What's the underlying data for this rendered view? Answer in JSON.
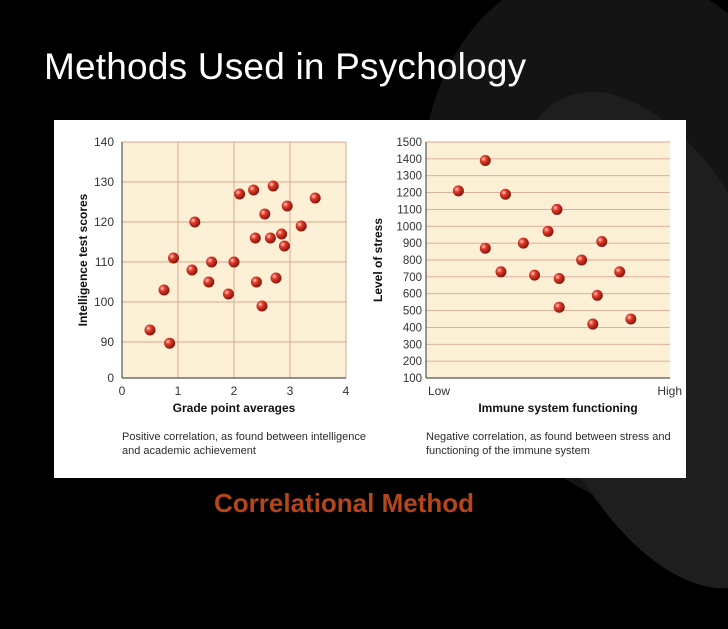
{
  "slide": {
    "title": "Methods Used in Psychology",
    "method_label": "Correlational Method"
  },
  "colors": {
    "plot_bg": "#fbefd5",
    "grid": "#d9a890",
    "point": "#e23a2a",
    "method_label": "#b5451b"
  },
  "chart_data": [
    {
      "type": "scatter",
      "xlabel": "Grade point averages",
      "ylabel": "Intelligence test scores",
      "xlim": [
        0,
        4
      ],
      "ylim": [
        0,
        140
      ],
      "x_ticks": [
        "0",
        "1",
        "2",
        "3",
        "4"
      ],
      "y_ticks": [
        "0",
        "90",
        "100",
        "110",
        "120",
        "130",
        "140"
      ],
      "caption": "Positive correlation, as found between intelligence and academic achievement",
      "grid": true,
      "points": [
        {
          "x": 0.5,
          "y": 93
        },
        {
          "x": 0.75,
          "y": 103
        },
        {
          "x": 0.85,
          "y": 87
        },
        {
          "x": 0.92,
          "y": 111
        },
        {
          "x": 1.25,
          "y": 108
        },
        {
          "x": 1.3,
          "y": 120
        },
        {
          "x": 1.55,
          "y": 105
        },
        {
          "x": 1.6,
          "y": 110
        },
        {
          "x": 1.9,
          "y": 102
        },
        {
          "x": 2.0,
          "y": 110
        },
        {
          "x": 2.1,
          "y": 127
        },
        {
          "x": 2.35,
          "y": 128
        },
        {
          "x": 2.38,
          "y": 116
        },
        {
          "x": 2.4,
          "y": 105
        },
        {
          "x": 2.5,
          "y": 99
        },
        {
          "x": 2.55,
          "y": 122
        },
        {
          "x": 2.65,
          "y": 116
        },
        {
          "x": 2.7,
          "y": 129
        },
        {
          "x": 2.75,
          "y": 106
        },
        {
          "x": 2.85,
          "y": 117
        },
        {
          "x": 2.9,
          "y": 114
        },
        {
          "x": 2.95,
          "y": 124
        },
        {
          "x": 3.2,
          "y": 119
        },
        {
          "x": 3.45,
          "y": 126
        }
      ]
    },
    {
      "type": "scatter",
      "xlabel": "Immune system functioning",
      "ylabel": "Level of stress",
      "x_ticks": [
        "Low",
        "High"
      ],
      "xlim": [
        0,
        1
      ],
      "ylim": [
        100,
        1500
      ],
      "y_ticks": [
        "100",
        "200",
        "300",
        "400",
        "500",
        "600",
        "700",
        "800",
        "900",
        "1000",
        "1100",
        "1200",
        "1300",
        "1400",
        "1500"
      ],
      "caption": "Negative correlation, as found between stress and functioning of the immune system",
      "grid": true,
      "points": [
        {
          "x": 0.1,
          "y": 1210
        },
        {
          "x": 0.22,
          "y": 1390
        },
        {
          "x": 0.22,
          "y": 870
        },
        {
          "x": 0.29,
          "y": 730
        },
        {
          "x": 0.31,
          "y": 1190
        },
        {
          "x": 0.39,
          "y": 900
        },
        {
          "x": 0.44,
          "y": 710
        },
        {
          "x": 0.5,
          "y": 970
        },
        {
          "x": 0.54,
          "y": 1100
        },
        {
          "x": 0.55,
          "y": 690
        },
        {
          "x": 0.55,
          "y": 520
        },
        {
          "x": 0.65,
          "y": 800
        },
        {
          "x": 0.7,
          "y": 420
        },
        {
          "x": 0.72,
          "y": 590
        },
        {
          "x": 0.74,
          "y": 910
        },
        {
          "x": 0.82,
          "y": 730
        },
        {
          "x": 0.87,
          "y": 450
        }
      ]
    }
  ]
}
